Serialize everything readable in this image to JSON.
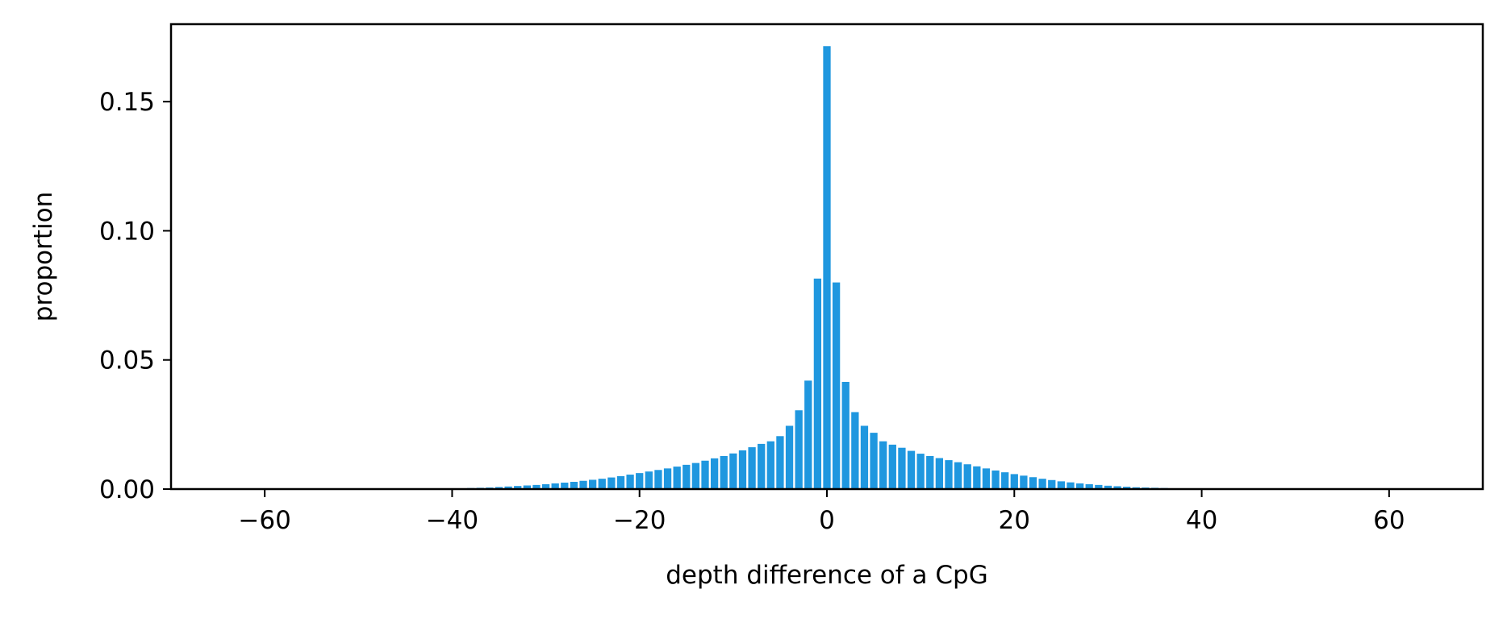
{
  "chart_data": {
    "type": "bar",
    "title": "",
    "xlabel": "depth difference of a CpG",
    "ylabel": "proportion",
    "xlim": [
      -70,
      70
    ],
    "ylim": [
      0,
      0.18
    ],
    "xticks": [
      -60,
      -40,
      -20,
      0,
      20,
      40,
      60
    ],
    "xtick_labels": [
      "−60",
      "−40",
      "−20",
      "0",
      "20",
      "40",
      "60"
    ],
    "yticks": [
      0.0,
      0.05,
      0.1,
      0.15
    ],
    "ytick_labels": [
      "0.00",
      "0.05",
      "0.10",
      "0.15"
    ],
    "bar_color": "#1f97df",
    "grid": false,
    "x": [
      -40,
      -39,
      -38,
      -37,
      -36,
      -35,
      -34,
      -33,
      -32,
      -31,
      -30,
      -29,
      -28,
      -27,
      -26,
      -25,
      -24,
      -23,
      -22,
      -21,
      -20,
      -19,
      -18,
      -17,
      -16,
      -15,
      -14,
      -13,
      -12,
      -11,
      -10,
      -9,
      -8,
      -7,
      -6,
      -5,
      -4,
      -3,
      -2,
      -1,
      0,
      1,
      2,
      3,
      4,
      5,
      6,
      7,
      8,
      9,
      10,
      11,
      12,
      13,
      14,
      15,
      16,
      17,
      18,
      19,
      20,
      21,
      22,
      23,
      24,
      25,
      26,
      27,
      28,
      29,
      30,
      31,
      32,
      33,
      34,
      35,
      36,
      37,
      38,
      39,
      40
    ],
    "values": [
      0.0002,
      0.0003,
      0.0004,
      0.0005,
      0.0006,
      0.0008,
      0.001,
      0.0012,
      0.0014,
      0.0016,
      0.0019,
      0.0022,
      0.0025,
      0.0028,
      0.0032,
      0.0036,
      0.004,
      0.0045,
      0.005,
      0.0056,
      0.0062,
      0.0068,
      0.0074,
      0.008,
      0.0087,
      0.0094,
      0.0101,
      0.011,
      0.0119,
      0.0128,
      0.0138,
      0.015,
      0.0162,
      0.0175,
      0.0185,
      0.0205,
      0.0245,
      0.0305,
      0.042,
      0.0815,
      0.1715,
      0.08,
      0.0415,
      0.0298,
      0.0245,
      0.0218,
      0.0185,
      0.0172,
      0.016,
      0.0148,
      0.0137,
      0.0128,
      0.012,
      0.0112,
      0.0104,
      0.0096,
      0.0088,
      0.008,
      0.0072,
      0.0065,
      0.0058,
      0.0052,
      0.0046,
      0.004,
      0.0035,
      0.003,
      0.0026,
      0.0022,
      0.0019,
      0.0016,
      0.0013,
      0.0011,
      0.0009,
      0.0007,
      0.0006,
      0.0005,
      0.0004,
      0.0003,
      0.0002,
      0.0002,
      0.0001
    ]
  }
}
